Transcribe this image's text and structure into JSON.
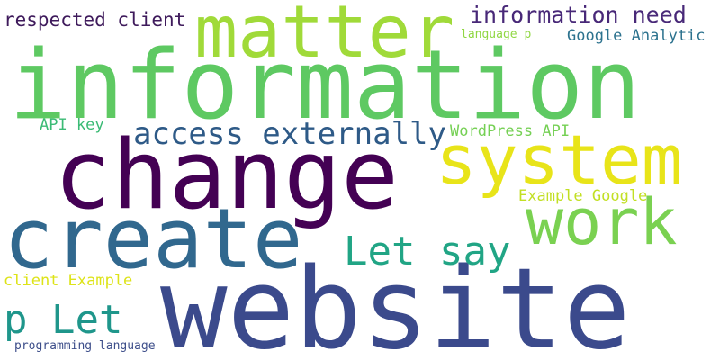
{
  "words": [
    {
      "text": "information",
      "color": "#5ec962"
    },
    {
      "text": "website",
      "color": "#3b4a8c"
    },
    {
      "text": "change",
      "color": "#440154"
    },
    {
      "text": "create",
      "color": "#31688e"
    },
    {
      "text": "matter",
      "color": "#a0da39"
    },
    {
      "text": "system",
      "color": "#e8e419"
    },
    {
      "text": "work",
      "color": "#7ad151"
    },
    {
      "text": "access externally",
      "color": "#2e5a87"
    },
    {
      "text": "Let say",
      "color": "#21a585"
    },
    {
      "text": "p Let",
      "color": "#1f968b"
    },
    {
      "text": "information need",
      "color": "#482878"
    },
    {
      "text": "respected client",
      "color": "#3e1a5b"
    },
    {
      "text": "Google Analytic",
      "color": "#2c728e"
    },
    {
      "text": "language p",
      "color": "#90d743"
    },
    {
      "text": "API key",
      "color": "#3bbb75"
    },
    {
      "text": "WordPress API",
      "color": "#75d054"
    },
    {
      "text": "Example Google",
      "color": "#c2df23"
    },
    {
      "text": "client Example",
      "color": "#dde318"
    },
    {
      "text": "programming language",
      "color": "#3d4e8a"
    }
  ]
}
